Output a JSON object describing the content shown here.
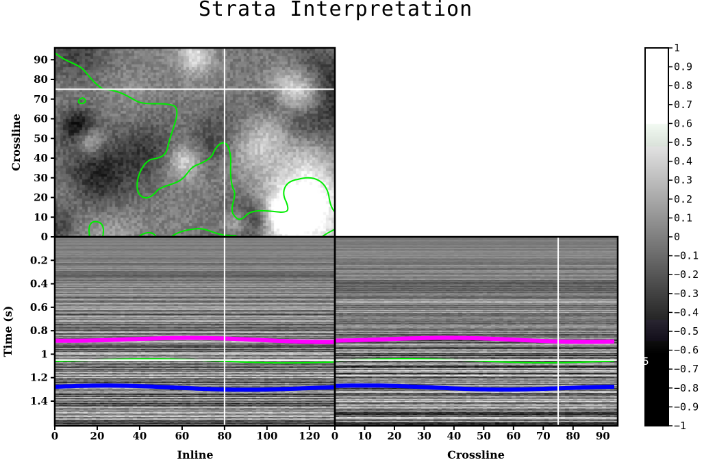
{
  "title": "Strata Interpretation",
  "stray_label": "5",
  "chart_data": [
    {
      "panel": "map-view",
      "type": "heatmap",
      "xlabel": "",
      "ylabel": "Crossline",
      "xlim": [
        0,
        132
      ],
      "ylim": [
        0,
        96
      ],
      "yticks": [
        "0",
        "10",
        "20",
        "30",
        "40",
        "50",
        "60",
        "70",
        "80",
        "90"
      ],
      "ytick_values": [
        0,
        10,
        20,
        30,
        40,
        50,
        60,
        70,
        80,
        90
      ],
      "crosshair": {
        "inline": 80,
        "crossline": 75
      },
      "contour_color": "#00ee00"
    },
    {
      "panel": "inline-section",
      "type": "heatmap",
      "xlabel": "Inline",
      "ylabel": "Time (s)",
      "xlim": [
        0,
        132
      ],
      "ylim": [
        1.61,
        0
      ],
      "xticks": [
        "0",
        "20",
        "40",
        "60",
        "80",
        "100",
        "120"
      ],
      "xtick_values": [
        0,
        20,
        40,
        60,
        80,
        100,
        120
      ],
      "yticks": [
        "0.2",
        "0.4",
        "0.6",
        "0.8",
        "1",
        "1.2",
        "1.4"
      ],
      "ytick_values": [
        0.2,
        0.4,
        0.6,
        0.8,
        1.0,
        1.2,
        1.4
      ],
      "crosshair": {
        "inline": 80,
        "time": 1.05
      }
    },
    {
      "panel": "crossline-section",
      "type": "heatmap",
      "xlabel": "Crossline",
      "xlim": [
        0,
        95
      ],
      "xticks": [
        "0",
        "10",
        "20",
        "30",
        "40",
        "50",
        "60",
        "70",
        "80",
        "90"
      ],
      "xtick_values": [
        0,
        10,
        20,
        30,
        40,
        50,
        60,
        70,
        80,
        90
      ],
      "crosshair": {
        "crossline": 75,
        "time": 1.05
      }
    }
  ],
  "horizons": [
    {
      "name": "horizon-magenta",
      "color": "#ff00ff",
      "time": 0.87,
      "width": 6
    },
    {
      "name": "horizon-green",
      "color": "#00ee00",
      "time": 1.05,
      "width": 2
    },
    {
      "name": "horizon-blue",
      "color": "#0000ff",
      "time": 1.28,
      "width": 6
    }
  ],
  "colorbar": {
    "range": [
      -1,
      1
    ],
    "ticks": [
      "1",
      "0.9",
      "0.8",
      "0.7",
      "0.6",
      "0.5",
      "0.4",
      "0.3",
      "0.2",
      "0.1",
      "0",
      "−0.1",
      "−0.2",
      "−0.3",
      "−0.4",
      "−0.5",
      "−0.6",
      "−0.7",
      "−0.8",
      "−0.9",
      "−1"
    ],
    "tick_values": [
      1,
      0.9,
      0.8,
      0.7,
      0.6,
      0.5,
      0.4,
      0.3,
      0.2,
      0.1,
      0,
      -0.1,
      -0.2,
      -0.3,
      -0.4,
      -0.5,
      -0.6,
      -0.7,
      -0.8,
      -0.9,
      -1
    ]
  }
}
